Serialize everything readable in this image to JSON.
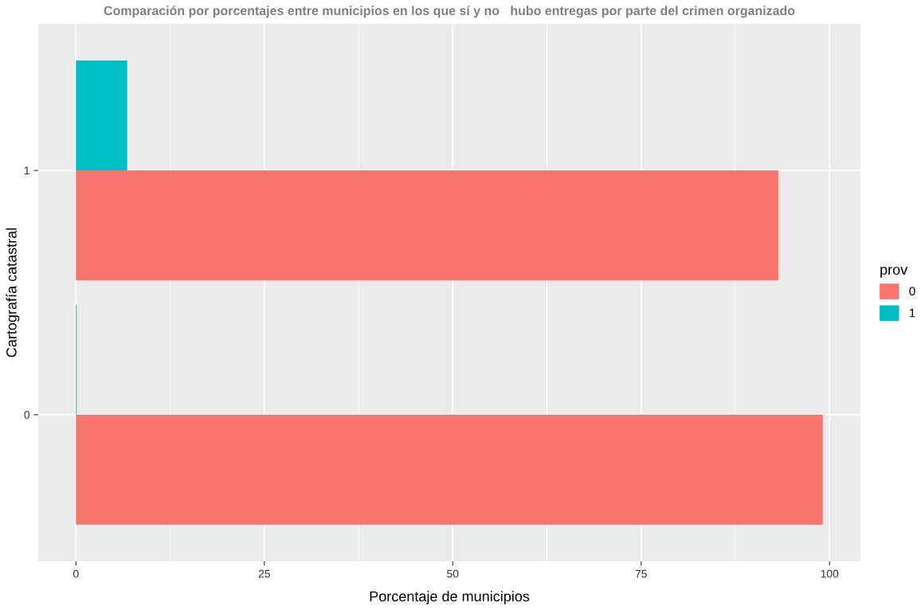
{
  "chart_data": {
    "type": "bar",
    "orientation": "horizontal",
    "title": "Comparación por porcentajes entre municipios en los que sí y no   hubo entregas por parte del crimen organizado",
    "xlabel": "Porcentaje de municipios",
    "ylabel": "Cartografía catastral",
    "legend_title": "prov",
    "categories": [
      "1",
      "0"
    ],
    "series": [
      {
        "name": "0",
        "color": "#f8766d",
        "values": [
          93.2,
          99.1
        ]
      },
      {
        "name": "1",
        "color": "#00bfc4",
        "values": [
          6.8,
          0.1
        ]
      }
    ],
    "xlim": [
      -5,
      104.1
    ],
    "xticks": [
      0,
      25,
      50,
      75,
      100
    ],
    "grid": true,
    "legend": "right"
  }
}
